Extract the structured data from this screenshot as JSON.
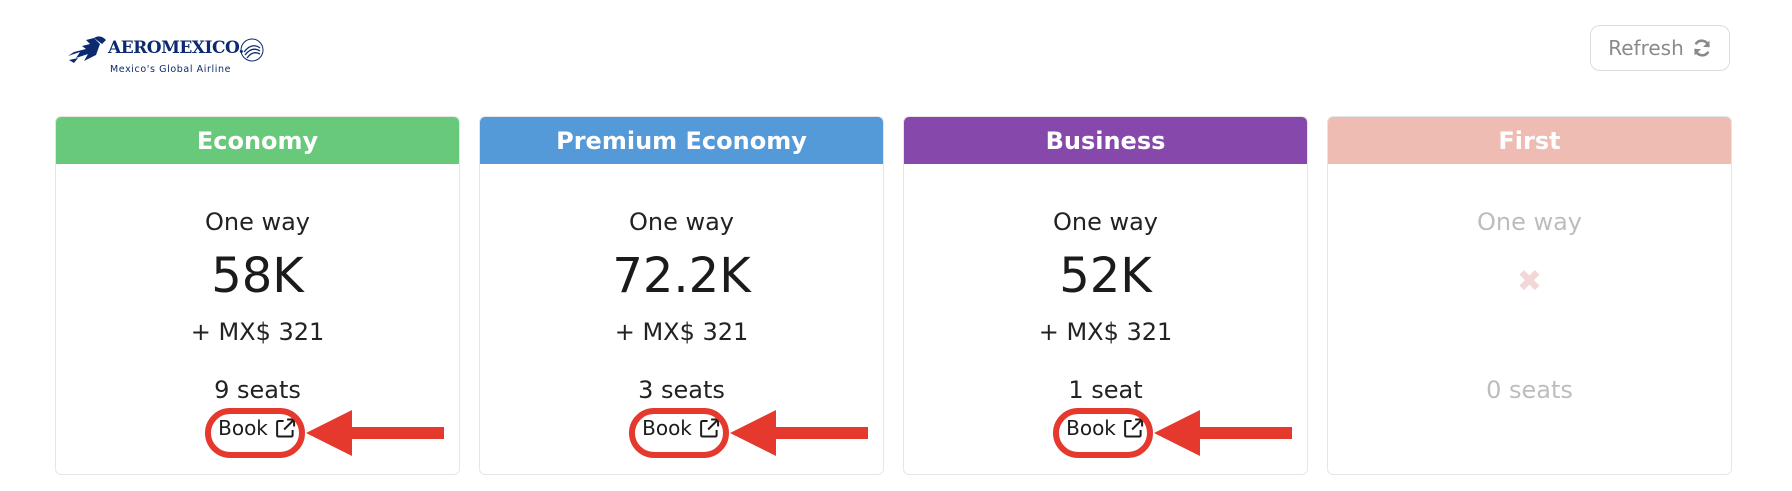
{
  "logo": {
    "wordmark": "AEROMEXICO.",
    "tagline": "Mexico's Global Airline",
    "brand_color": "#0b2a6f"
  },
  "toolbar": {
    "refresh_label": "Refresh",
    "refresh_icon": "refresh-icon"
  },
  "cards": [
    {
      "cabin": "Economy",
      "header_color": "#68c97a",
      "trip": "One way",
      "miles": "58K",
      "taxes": "+ MX$ 321",
      "seats": "9 seats",
      "book_label": "Book",
      "available": true
    },
    {
      "cabin": "Premium Economy",
      "header_color": "#5499d8",
      "trip": "One way",
      "miles": "72.2K",
      "taxes": "+ MX$ 321",
      "seats": "3 seats",
      "book_label": "Book",
      "available": true
    },
    {
      "cabin": "Business",
      "header_color": "#8649ab",
      "trip": "One way",
      "miles": "52K",
      "taxes": "+ MX$ 321",
      "seats": "1 seat",
      "book_label": "Book",
      "available": true
    },
    {
      "cabin": "First",
      "header_color": "#efbcb4",
      "trip": "One way",
      "unavailable_mark": "✖",
      "seats": "0 seats",
      "available": false
    }
  ],
  "annotation": {
    "color": "#e5392d"
  }
}
